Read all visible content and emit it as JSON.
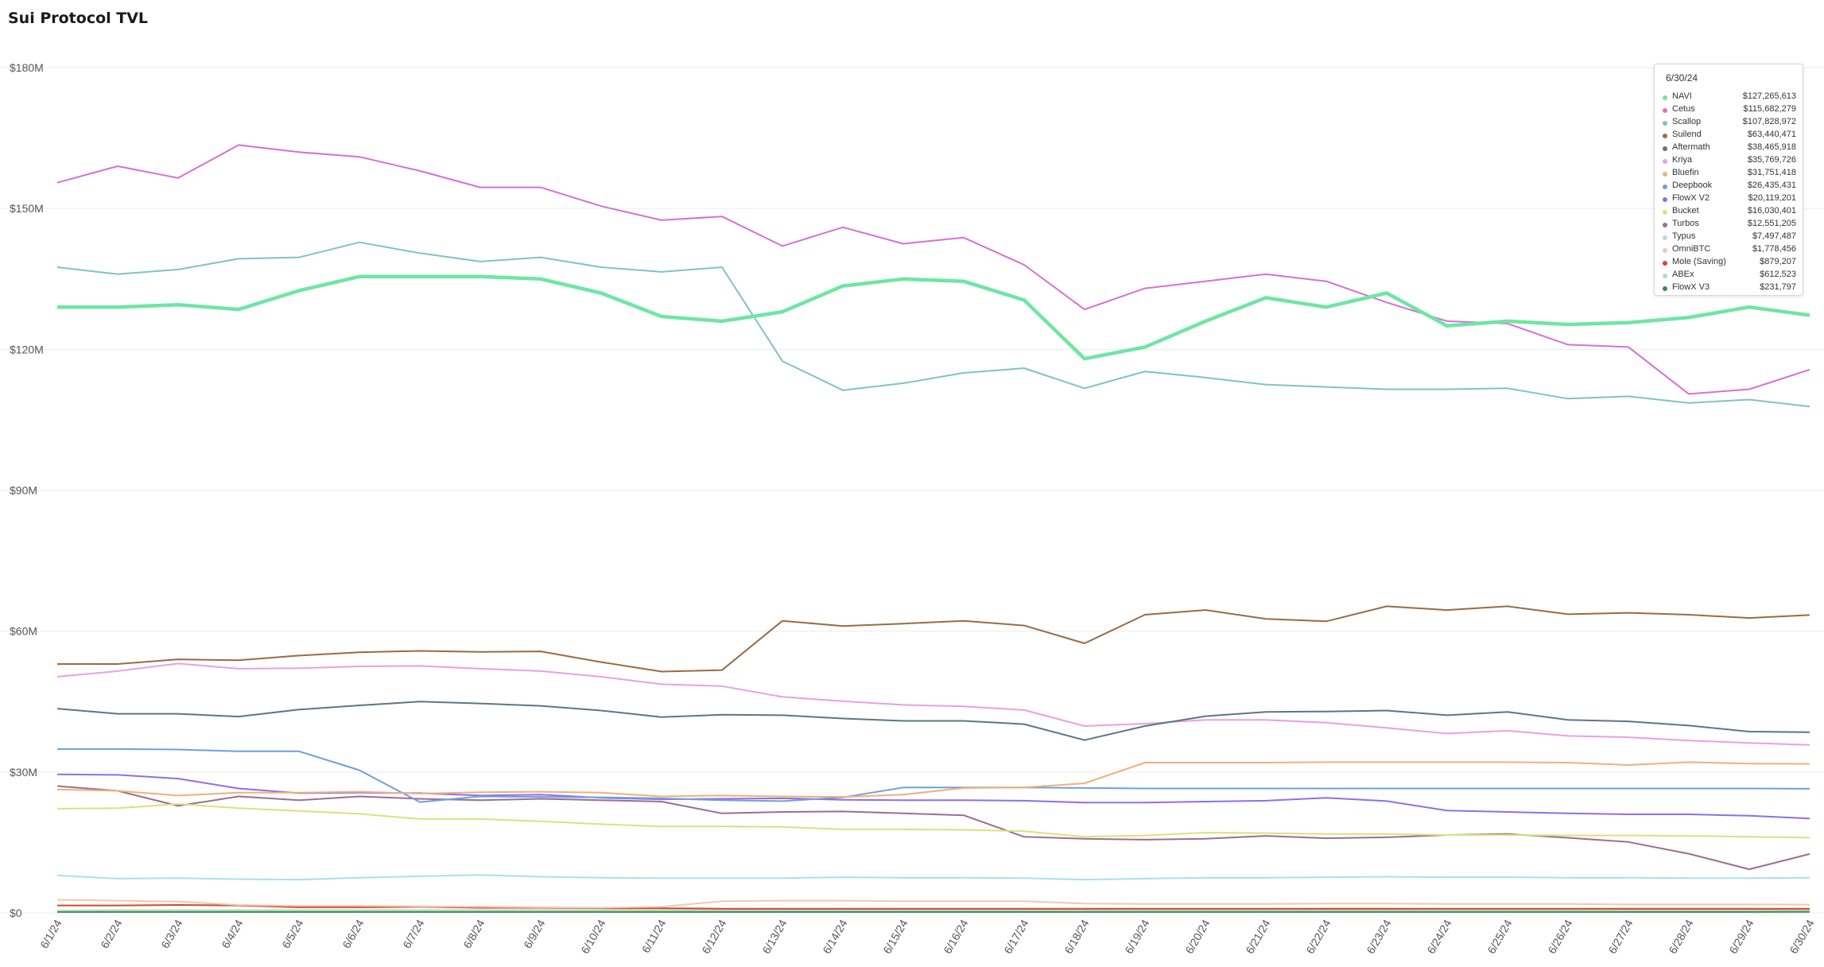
{
  "chart_data": {
    "type": "line",
    "title": "Sui Protocol TVL",
    "xlabel": "",
    "ylabel": "",
    "ylim": [
      0,
      180000000
    ],
    "y_ticks": [
      "$0",
      "$30M",
      "$60M",
      "$90M",
      "$120M",
      "$150M",
      "$180M"
    ],
    "y_tick_values": [
      0,
      30000000,
      60000000,
      90000000,
      120000000,
      150000000,
      180000000
    ],
    "grid": true,
    "legend": "tooltip top-right",
    "categories": [
      "6/1/24",
      "6/2/24",
      "6/3/24",
      "6/4/24",
      "6/5/24",
      "6/6/24",
      "6/7/24",
      "6/8/24",
      "6/9/24",
      "6/10/24",
      "6/11/24",
      "6/12/24",
      "6/13/24",
      "6/14/24",
      "6/15/24",
      "6/16/24",
      "6/17/24",
      "6/18/24",
      "6/19/24",
      "6/20/24",
      "6/21/24",
      "6/22/24",
      "6/23/24",
      "6/24/24",
      "6/25/24",
      "6/26/24",
      "6/27/24",
      "6/28/24",
      "6/29/24",
      "6/30/24"
    ],
    "series": [
      {
        "name": "NAVI",
        "color": "#6ee6a3",
        "width": 4.5,
        "values": [
          129,
          129,
          129.5,
          128.5,
          132.5,
          135.5,
          135.5,
          135.5,
          135,
          132,
          127,
          126,
          128,
          133.5,
          135,
          134.5,
          130.5,
          118,
          120.5,
          126,
          131,
          129,
          132,
          125,
          126,
          125.3,
          125.7,
          126.8,
          129,
          127.27
        ]
      },
      {
        "name": "Cetus",
        "color": "#d96fd4",
        "width": 2,
        "values": [
          155.5,
          159,
          156.5,
          163.5,
          162,
          161,
          158,
          154.5,
          154.5,
          150.5,
          147.5,
          148.3,
          142,
          146,
          142.5,
          143.8,
          138,
          128.5,
          133,
          134.5,
          136,
          134.5,
          130,
          126,
          125.5,
          121,
          120.5,
          110.5,
          111.5,
          115.68
        ]
      },
      {
        "name": "Scallop",
        "color": "#7fc3c4",
        "width": 2,
        "values": [
          137.5,
          136,
          137,
          139.3,
          139.6,
          142.8,
          140.5,
          138.7,
          139.6,
          137.5,
          136.5,
          137.5,
          117.5,
          111.3,
          112.8,
          115,
          116,
          111.7,
          115.3,
          114,
          112.5,
          112,
          111.5,
          111.5,
          111.7,
          109.5,
          110,
          108.6,
          109.3,
          107.83
        ]
      },
      {
        "name": "Suilend",
        "color": "#9a6b45",
        "width": 2,
        "values": [
          53,
          53,
          54,
          53.8,
          54.8,
          55.5,
          55.8,
          55.6,
          55.7,
          53.4,
          51.4,
          51.7,
          62.2,
          61.1,
          61.6,
          62.2,
          61.2,
          57.4,
          63.5,
          64.5,
          62.6,
          62.1,
          65.3,
          64.5,
          65.3,
          63.6,
          63.9,
          63.5,
          62.8,
          63.44
        ]
      },
      {
        "name": "Aftermath",
        "color": "#5e7585",
        "width": 2,
        "values": [
          43.5,
          42.4,
          42.4,
          41.8,
          43.3,
          44.2,
          45,
          44.6,
          44.1,
          43.1,
          41.7,
          42.2,
          42.1,
          41.4,
          40.9,
          40.9,
          40.2,
          36.8,
          39.8,
          41.9,
          42.8,
          42.9,
          43.1,
          42.1,
          42.8,
          41.1,
          40.8,
          39.9,
          38.6,
          38.47
        ]
      },
      {
        "name": "Kriya",
        "color": "#e8a0e4",
        "width": 2,
        "values": [
          50.3,
          51.5,
          53.1,
          52,
          52.1,
          52.5,
          52.6,
          52,
          51.5,
          50.3,
          48.7,
          48.3,
          46,
          45.1,
          44.3,
          44,
          43.2,
          39.8,
          40.3,
          41.1,
          41.1,
          40.5,
          39.4,
          38.2,
          38.8,
          37.7,
          37.4,
          36.7,
          36.2,
          35.77
        ]
      },
      {
        "name": "Bluefin",
        "color": "#f0b07a",
        "width": 2,
        "values": [
          26.3,
          26,
          25,
          25.6,
          25.6,
          25.8,
          25.4,
          25.7,
          25.8,
          25.6,
          24.8,
          25,
          24.8,
          24.7,
          25.2,
          26.6,
          26.7,
          27.6,
          32,
          32,
          32,
          32.1,
          32.1,
          32.1,
          32.1,
          32,
          31.5,
          32.1,
          31.8,
          31.75
        ]
      },
      {
        "name": "Deepbook",
        "color": "#6f9fe0",
        "width": 2,
        "values": [
          34.9,
          34.9,
          34.8,
          34.4,
          34.4,
          30.4,
          23.6,
          24.8,
          24.7,
          24.6,
          24.4,
          24,
          23.8,
          24.6,
          26.7,
          26.7,
          26.7,
          26.6,
          26.5,
          26.5,
          26.5,
          26.5,
          26.5,
          26.5,
          26.5,
          26.5,
          26.5,
          26.5,
          26.5,
          26.44
        ]
      },
      {
        "name": "FlowX V2",
        "color": "#8f6ee8",
        "width": 2,
        "values": [
          29.5,
          29.4,
          28.6,
          26.5,
          25.5,
          25.6,
          25.5,
          25,
          25.2,
          24.5,
          24.2,
          24.3,
          24.4,
          24.1,
          24,
          24,
          23.9,
          23.5,
          23.5,
          23.7,
          23.9,
          24.5,
          23.8,
          21.8,
          21.5,
          21.2,
          21,
          21,
          20.7,
          20.12
        ]
      },
      {
        "name": "Bucket",
        "color": "#dbe27b",
        "width": 2,
        "values": [
          22.2,
          22.3,
          23.2,
          22.3,
          21.7,
          21.1,
          20,
          20,
          19.5,
          18.9,
          18.4,
          18.4,
          18.3,
          17.8,
          17.8,
          17.7,
          17.4,
          16.2,
          16.5,
          17.1,
          17,
          16.8,
          16.8,
          16.6,
          16.6,
          16.5,
          16.5,
          16.4,
          16.2,
          16.03
        ]
      },
      {
        "name": "Turbos",
        "color": "#9d6e8f",
        "width": 2,
        "values": [
          27,
          26,
          22.8,
          24.8,
          24,
          24.8,
          24.3,
          24,
          24.3,
          24,
          23.7,
          21.2,
          21.5,
          21.6,
          21.2,
          20.8,
          16.2,
          15.8,
          15.6,
          15.8,
          16.4,
          15.9,
          16.1,
          16.6,
          16.8,
          16,
          15.1,
          12.6,
          9.3,
          12.55
        ]
      },
      {
        "name": "Typus",
        "color": "#a9dfee",
        "width": 2,
        "values": [
          8,
          7.3,
          7.4,
          7.2,
          7.1,
          7.5,
          7.8,
          8.1,
          7.7,
          7.5,
          7.4,
          7.4,
          7.4,
          7.6,
          7.5,
          7.5,
          7.4,
          7.1,
          7.3,
          7.5,
          7.5,
          7.6,
          7.7,
          7.6,
          7.6,
          7.5,
          7.5,
          7.4,
          7.4,
          7.5
        ]
      },
      {
        "name": "OmniBTC",
        "color": "#f2c8b0",
        "width": 2,
        "values": [
          2.8,
          2.6,
          2.4,
          1.7,
          1.5,
          1.5,
          1.4,
          1.3,
          1.2,
          1.1,
          1.3,
          2.5,
          2.6,
          2.6,
          2.5,
          2.5,
          2.5,
          2.0,
          1.9,
          1.9,
          1.9,
          2.0,
          2.0,
          1.9,
          1.9,
          1.9,
          1.8,
          1.8,
          1.8,
          1.78
        ]
      },
      {
        "name": "Mole (Saving)",
        "color": "#d8452c",
        "width": 2,
        "values": [
          1.6,
          1.6,
          1.7,
          1.6,
          1.2,
          1.2,
          1.3,
          1.1,
          1.1,
          1.0,
          1.0,
          0.9,
          0.9,
          0.9,
          0.9,
          0.9,
          0.9,
          0.9,
          0.9,
          0.9,
          0.9,
          0.9,
          0.9,
          0.9,
          0.9,
          0.9,
          0.9,
          0.9,
          0.9,
          0.88
        ]
      },
      {
        "name": "ABEx",
        "color": "#b8d8c6",
        "width": 2,
        "values": [
          0.5,
          0.6,
          0.6,
          0.6,
          0.6,
          0.6,
          0.6,
          0.6,
          0.6,
          0.6,
          0.6,
          0.6,
          0.6,
          0.6,
          0.6,
          0.6,
          0.6,
          0.6,
          0.6,
          0.6,
          0.6,
          0.6,
          0.6,
          0.6,
          0.6,
          0.6,
          0.6,
          0.6,
          0.6,
          0.61
        ]
      },
      {
        "name": "FlowX V3",
        "color": "#2e8f42",
        "width": 2,
        "values": [
          0.2,
          0.2,
          0.2,
          0.2,
          0.2,
          0.2,
          0.2,
          0.2,
          0.2,
          0.2,
          0.2,
          0.2,
          0.2,
          0.2,
          0.2,
          0.2,
          0.2,
          0.2,
          0.2,
          0.2,
          0.2,
          0.2,
          0.2,
          0.2,
          0.2,
          0.2,
          0.2,
          0.2,
          0.2,
          0.23
        ]
      }
    ],
    "value_unit": "$M",
    "tooltip": {
      "date": "6/30/24",
      "rows": [
        {
          "name": "NAVI",
          "value": "$127,265,613",
          "color": "#6ee6a3"
        },
        {
          "name": "Cetus",
          "value": "$115,682,279",
          "color": "#d96fd4"
        },
        {
          "name": "Scallop",
          "value": "$107,828,972",
          "color": "#7fc3c4"
        },
        {
          "name": "Suilend",
          "value": "$63,440,471",
          "color": "#9a6b45"
        },
        {
          "name": "Aftermath",
          "value": "$38,465,918",
          "color": "#5e7585"
        },
        {
          "name": "Kriya",
          "value": "$35,769,726",
          "color": "#e8a0e4"
        },
        {
          "name": "Bluefin",
          "value": "$31,751,418",
          "color": "#f0b07a"
        },
        {
          "name": "Deepbook",
          "value": "$26,435,431",
          "color": "#6f9fe0"
        },
        {
          "name": "FlowX V2",
          "value": "$20,119,201",
          "color": "#8f6ee8"
        },
        {
          "name": "Bucket",
          "value": "$16,030,401",
          "color": "#dbe27b"
        },
        {
          "name": "Turbos",
          "value": "$12,551,205",
          "color": "#9d6e8f"
        },
        {
          "name": "Typus",
          "value": "$7,497,487",
          "color": "#a9dfee"
        },
        {
          "name": "OmniBTC",
          "value": "$1,778,456",
          "color": "#f2c8b0"
        },
        {
          "name": "Mole (Saving)",
          "value": "$879,207",
          "color": "#d8452c"
        },
        {
          "name": "ABEx",
          "value": "$612,523",
          "color": "#b8d8c6"
        },
        {
          "name": "FlowX V3",
          "value": "$231,797",
          "color": "#2e8f42"
        }
      ]
    }
  }
}
